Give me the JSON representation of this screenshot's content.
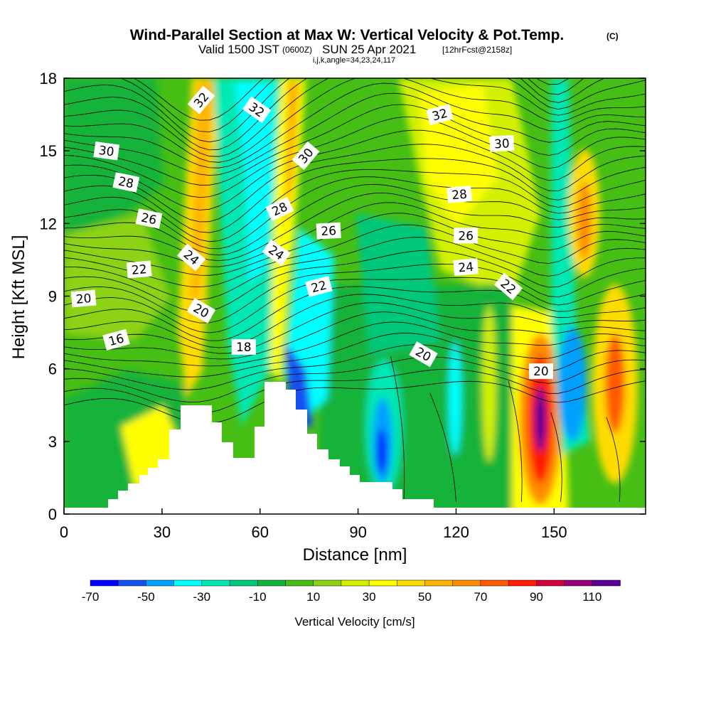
{
  "title": {
    "main": "Wind-Parallel Section at Max W: Vertical Velocity & Pot.Temp.",
    "copyright": "(C)",
    "valid_prefix": "Valid 1500 JST",
    "valid_utc": "(0600Z)",
    "valid_date": "SUN 25 Apr 2021",
    "forecast": "[12hrFcst@2158z]",
    "indices": "i,j,k,angle=34,23,24,117"
  },
  "chart_data": {
    "type": "heatmap",
    "xlabel": "Distance [nm]",
    "ylabel": "Height [Kft MSL]",
    "xlim": [
      0,
      178
    ],
    "ylim": [
      0,
      18
    ],
    "x_ticks": [
      0,
      30,
      60,
      90,
      120,
      150
    ],
    "y_ticks": [
      0,
      3,
      6,
      9,
      12,
      15,
      18
    ],
    "colorbar": {
      "label": "Vertical Velocity [cm/s]",
      "tick_labels": [
        "-70",
        "-50",
        "-30",
        "-10",
        "10",
        "30",
        "50",
        "70",
        "90",
        "110"
      ],
      "levels": [
        -70,
        -60,
        -50,
        -40,
        -30,
        -20,
        -10,
        0,
        10,
        20,
        30,
        40,
        50,
        60,
        70,
        80,
        90,
        100,
        110,
        120
      ],
      "colors": [
        "#0000ff",
        "#1450f0",
        "#00a0ff",
        "#00ffff",
        "#00e8b4",
        "#00c87a",
        "#12b33a",
        "#46be14",
        "#8cd214",
        "#d2f000",
        "#ffff00",
        "#ffdc00",
        "#ffb400",
        "#ff8c00",
        "#ff5a00",
        "#ff1e00",
        "#d2003c",
        "#96007a",
        "#5a0096"
      ]
    },
    "contour_labels": [
      {
        "text": "32",
        "x": 42,
        "y": 17.1,
        "rot": -50
      },
      {
        "text": "32",
        "x": 59,
        "y": 16.7,
        "rot": 35
      },
      {
        "text": "30",
        "x": 74,
        "y": 14.8,
        "rot": -50
      },
      {
        "text": "32",
        "x": 115,
        "y": 16.5,
        "rot": -15
      },
      {
        "text": "30",
        "x": 13,
        "y": 15.0,
        "rot": 8
      },
      {
        "text": "30",
        "x": 134,
        "y": 15.3,
        "rot": -3
      },
      {
        "text": "28",
        "x": 19,
        "y": 13.7,
        "rot": 12
      },
      {
        "text": "28",
        "x": 66,
        "y": 12.6,
        "rot": -25
      },
      {
        "text": "28",
        "x": 121,
        "y": 13.2,
        "rot": -5
      },
      {
        "text": "26",
        "x": 26,
        "y": 12.2,
        "rot": 12
      },
      {
        "text": "26",
        "x": 81,
        "y": 11.7,
        "rot": -3
      },
      {
        "text": "26",
        "x": 123,
        "y": 11.5,
        "rot": 0
      },
      {
        "text": "24",
        "x": 39,
        "y": 10.6,
        "rot": 40
      },
      {
        "text": "24",
        "x": 65,
        "y": 10.8,
        "rot": 35
      },
      {
        "text": "24",
        "x": 123,
        "y": 10.2,
        "rot": -5
      },
      {
        "text": "22",
        "x": 23,
        "y": 10.1,
        "rot": -5
      },
      {
        "text": "22",
        "x": 78,
        "y": 9.4,
        "rot": -15
      },
      {
        "text": "22",
        "x": 136,
        "y": 9.4,
        "rot": 40
      },
      {
        "text": "20",
        "x": 6,
        "y": 8.9,
        "rot": -5
      },
      {
        "text": "20",
        "x": 42,
        "y": 8.4,
        "rot": 30
      },
      {
        "text": "20",
        "x": 110,
        "y": 6.6,
        "rot": 30
      },
      {
        "text": "20",
        "x": 146,
        "y": 5.9,
        "rot": 0
      },
      {
        "text": "16",
        "x": 16,
        "y": 7.2,
        "rot": -15
      },
      {
        "text": "18",
        "x": 55,
        "y": 6.9,
        "rot": 0
      }
    ]
  }
}
